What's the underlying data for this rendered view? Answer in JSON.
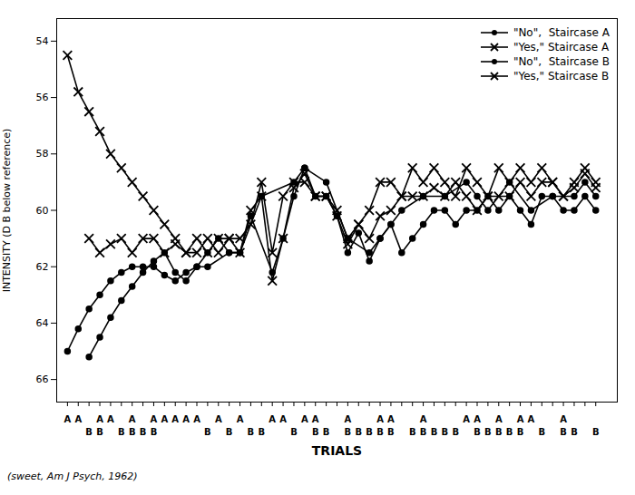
{
  "chart_data": {
    "type": "line",
    "ylabel": "INTENSITY (D B below reference)",
    "xlabel": "TRIALS",
    "annotations": [
      {
        "text": "(sweet, Am J Psych, 1962)"
      }
    ],
    "xlim": [
      0,
      52
    ],
    "xticks": [
      1,
      2,
      3,
      4,
      5,
      6,
      7,
      8,
      9,
      10,
      11,
      12,
      13,
      14,
      15,
      16,
      17,
      18,
      19,
      20,
      21,
      22,
      23,
      24,
      25,
      26,
      27,
      28,
      29,
      30,
      31,
      32,
      33,
      34,
      35,
      36,
      37,
      38,
      39,
      40,
      41,
      42,
      43,
      44,
      45,
      46,
      47,
      48,
      49,
      50
    ],
    "ylim": [
      66.8,
      53.2
    ],
    "yticks": [
      54,
      56,
      58,
      60,
      62,
      64,
      66
    ],
    "tick_labels": "y",
    "grid": false,
    "legend": "upper right",
    "series": [
      {
        "name": "\"No\",  Staircase A",
        "color": "#000000",
        "marker": "circle",
        "line_style": "solid",
        "x": [
          1,
          2,
          3,
          4,
          5,
          6,
          7,
          8,
          9,
          10,
          11,
          12,
          13,
          14,
          16,
          17,
          19,
          22,
          23,
          25,
          27,
          29,
          30,
          31,
          32,
          34,
          36,
          38,
          39,
          40,
          42,
          44,
          46,
          48,
          49,
          50
        ],
        "values": [
          65.0,
          64.2,
          63.5,
          63.0,
          62.5,
          62.2,
          62.0,
          62.0,
          62.0,
          62.3,
          62.5,
          62.2,
          62.0,
          62.0,
          61.5,
          61.5,
          59.5,
          59.0,
          58.5,
          59.0,
          61.0,
          61.5,
          61.0,
          60.5,
          60.0,
          59.5,
          59.5,
          59.0,
          59.5,
          60.0,
          59.0,
          60.0,
          59.5,
          59.5,
          59.0,
          59.5
        ]
      },
      {
        "name": "\"Yes,\" Staircase A",
        "color": "#000000",
        "marker": "x",
        "line_style": "solid",
        "x": [
          1,
          2,
          3,
          4,
          5,
          6,
          7,
          8,
          9,
          10,
          11,
          12,
          13,
          14,
          15,
          16,
          17,
          18,
          19,
          20,
          21,
          22,
          23,
          24,
          25,
          26,
          27,
          28,
          29,
          30,
          31,
          32,
          33,
          34,
          35,
          36,
          37,
          38,
          39,
          40,
          41,
          42,
          43,
          44,
          45,
          46,
          47,
          48,
          49,
          50
        ],
        "values": [
          54.5,
          55.8,
          56.5,
          57.2,
          58.0,
          58.5,
          59.0,
          59.5,
          60.0,
          60.5,
          61.0,
          61.5,
          61.5,
          61.0,
          61.5,
          61.0,
          61.0,
          60.5,
          59.0,
          61.5,
          59.5,
          59.0,
          59.0,
          59.5,
          59.5,
          60.0,
          61.0,
          60.5,
          60.0,
          59.0,
          59.0,
          59.5,
          58.5,
          59.0,
          58.5,
          59.0,
          59.5,
          58.5,
          59.0,
          59.5,
          58.5,
          59.0,
          58.5,
          59.0,
          58.5,
          59.0,
          59.5,
          59.0,
          58.5,
          59.0
        ]
      },
      {
        "name": "\"No\",  Staircase B",
        "color": "#000000",
        "marker": "circle",
        "line_style": "solid",
        "x": [
          3,
          4,
          5,
          6,
          7,
          8,
          9,
          10,
          11,
          12,
          13,
          14,
          15,
          16,
          17,
          18,
          20,
          21,
          22,
          23,
          24,
          25,
          26,
          27,
          28,
          29,
          30,
          31,
          32,
          33,
          34,
          35,
          36,
          37,
          38,
          39,
          40,
          41,
          42,
          43,
          44,
          45,
          46,
          47,
          48,
          49,
          50
        ],
        "values": [
          65.2,
          64.5,
          63.8,
          63.2,
          62.7,
          62.2,
          61.8,
          61.5,
          62.2,
          62.5,
          62.0,
          61.5,
          61.0,
          61.5,
          61.5,
          60.2,
          62.2,
          61.0,
          59.5,
          58.5,
          59.5,
          59.5,
          60.2,
          61.5,
          60.8,
          61.8,
          61.0,
          60.5,
          61.5,
          61.0,
          60.5,
          60.0,
          60.0,
          60.5,
          60.0,
          60.0,
          59.5,
          60.0,
          59.5,
          60.0,
          60.5,
          59.5,
          59.5,
          60.0,
          60.0,
          59.5,
          60.0
        ]
      },
      {
        "name": "\"Yes,\" Staircase B",
        "color": "#000000",
        "marker": "x",
        "line_style": "solid",
        "x": [
          3,
          4,
          5,
          6,
          7,
          8,
          9,
          10,
          11,
          12,
          13,
          14,
          15,
          16,
          17,
          18,
          19,
          20,
          21,
          22,
          23,
          24,
          25,
          26,
          27,
          28,
          29,
          30,
          31,
          32,
          33,
          34,
          35,
          36,
          37,
          38,
          39,
          40,
          41,
          42,
          43,
          44,
          45,
          46,
          47,
          48,
          49,
          50
        ],
        "values": [
          61.0,
          61.5,
          61.2,
          61.0,
          61.5,
          61.0,
          61.0,
          61.5,
          61.2,
          61.5,
          61.0,
          61.5,
          61.0,
          61.0,
          61.5,
          60.0,
          59.5,
          62.5,
          61.0,
          59.2,
          58.7,
          59.5,
          59.5,
          60.2,
          61.2,
          60.5,
          61.0,
          60.2,
          60.0,
          59.5,
          59.5,
          59.5,
          59.2,
          59.5,
          59.0,
          59.5,
          60.0,
          59.5,
          59.5,
          59.5,
          59.0,
          59.5,
          59.0,
          59.0,
          59.5,
          59.2,
          58.7,
          59.2
        ]
      }
    ],
    "a_labels": [
      {
        "x": 1,
        "text": "A"
      },
      {
        "x": 2,
        "text": "A"
      },
      {
        "x": 4,
        "text": "A"
      },
      {
        "x": 5,
        "text": "A"
      },
      {
        "x": 7,
        "text": "A"
      },
      {
        "x": 9,
        "text": "A"
      },
      {
        "x": 10,
        "text": "A"
      },
      {
        "x": 11,
        "text": "A"
      },
      {
        "x": 12,
        "text": "A"
      },
      {
        "x": 13,
        "text": "A"
      },
      {
        "x": 15,
        "text": "A"
      },
      {
        "x": 17,
        "text": "A"
      },
      {
        "x": 20,
        "text": "A"
      },
      {
        "x": 21,
        "text": "A"
      },
      {
        "x": 23,
        "text": "A"
      },
      {
        "x": 24,
        "text": "A"
      },
      {
        "x": 27,
        "text": "A"
      },
      {
        "x": 30,
        "text": "A"
      },
      {
        "x": 31,
        "text": "A"
      },
      {
        "x": 34,
        "text": "A"
      },
      {
        "x": 38,
        "text": "A"
      },
      {
        "x": 39,
        "text": "A"
      },
      {
        "x": 41,
        "text": "A"
      },
      {
        "x": 43,
        "text": "A"
      },
      {
        "x": 44,
        "text": "A"
      },
      {
        "x": 47,
        "text": "A"
      }
    ],
    "b_labels": [
      {
        "x": 3,
        "text": "B"
      },
      {
        "x": 4,
        "text": "B"
      },
      {
        "x": 6,
        "text": "B"
      },
      {
        "x": 7,
        "text": "B"
      },
      {
        "x": 8,
        "text": "B"
      },
      {
        "x": 9,
        "text": "B"
      },
      {
        "x": 14,
        "text": "B"
      },
      {
        "x": 16,
        "text": "B"
      },
      {
        "x": 18,
        "text": "B"
      },
      {
        "x": 19,
        "text": "B"
      },
      {
        "x": 22,
        "text": "B"
      },
      {
        "x": 24,
        "text": "B"
      },
      {
        "x": 25,
        "text": "B"
      },
      {
        "x": 27,
        "text": "B"
      },
      {
        "x": 28,
        "text": "B"
      },
      {
        "x": 29,
        "text": "B"
      },
      {
        "x": 30,
        "text": "B"
      },
      {
        "x": 31,
        "text": "B"
      },
      {
        "x": 33,
        "text": "B"
      },
      {
        "x": 34,
        "text": "B"
      },
      {
        "x": 35,
        "text": "B"
      },
      {
        "x": 36,
        "text": "B"
      },
      {
        "x": 37,
        "text": "B"
      },
      {
        "x": 39,
        "text": "B"
      },
      {
        "x": 40,
        "text": "B"
      },
      {
        "x": 41,
        "text": "B"
      },
      {
        "x": 42,
        "text": "B"
      },
      {
        "x": 43,
        "text": "B"
      },
      {
        "x": 45,
        "text": "B"
      },
      {
        "x": 47,
        "text": "B"
      },
      {
        "x": 48,
        "text": "B"
      },
      {
        "x": 50,
        "text": "B"
      }
    ]
  }
}
